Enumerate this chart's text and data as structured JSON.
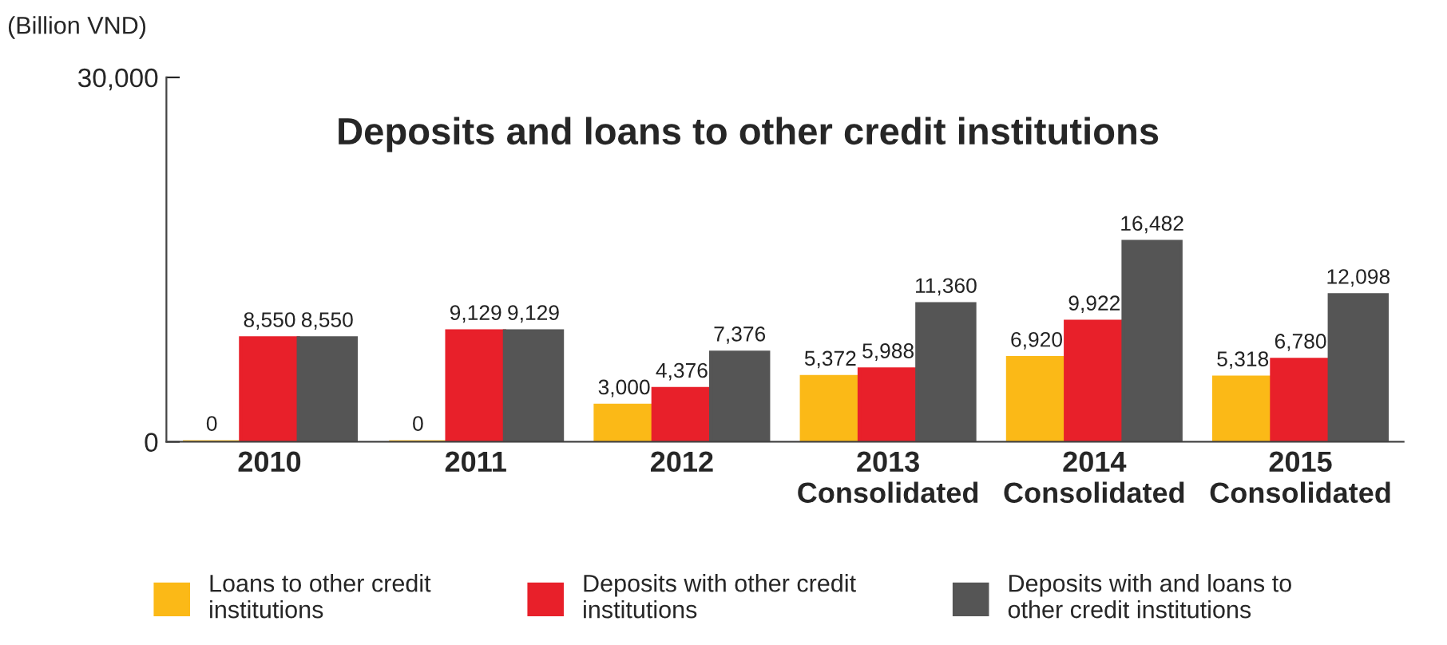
{
  "chart_data": {
    "type": "bar",
    "title": "Deposits and loans to other credit institutions",
    "ylabel": "(Billion VND)",
    "categories": [
      "2010",
      "2011",
      "2012",
      "2013\nConsolidated",
      "2014\nConsolidated",
      "2015\nConsolidated"
    ],
    "series": [
      {
        "name": "Loans to other credit institutions",
        "color": "#fbb917",
        "values": [
          0,
          0,
          3000,
          5372,
          6920,
          5318
        ],
        "value_labels": [
          "0",
          "0",
          "3,000",
          "5,372",
          "6,920",
          "5,318"
        ]
      },
      {
        "name": "Deposits with other credit institutions",
        "color": "#e8202a",
        "values": [
          8550,
          9129,
          4376,
          5988,
          9922,
          6780
        ],
        "value_labels": [
          "8,550",
          "9,129",
          "4,376",
          "5,988",
          "9,922",
          "6,780"
        ]
      },
      {
        "name": "Deposits with and loans to other credit institutions",
        "color": "#555555",
        "values": [
          8550,
          9129,
          7376,
          11360,
          16482,
          12098
        ],
        "value_labels": [
          "8,550",
          "9,129",
          "7,376",
          "11,360",
          "16,482",
          "12,098"
        ]
      }
    ],
    "ylim": [
      0,
      30000
    ],
    "yticks": [
      0,
      {
        "value": 30000,
        "label": "30,000"
      }
    ],
    "legend": "bottom",
    "grid": false
  }
}
